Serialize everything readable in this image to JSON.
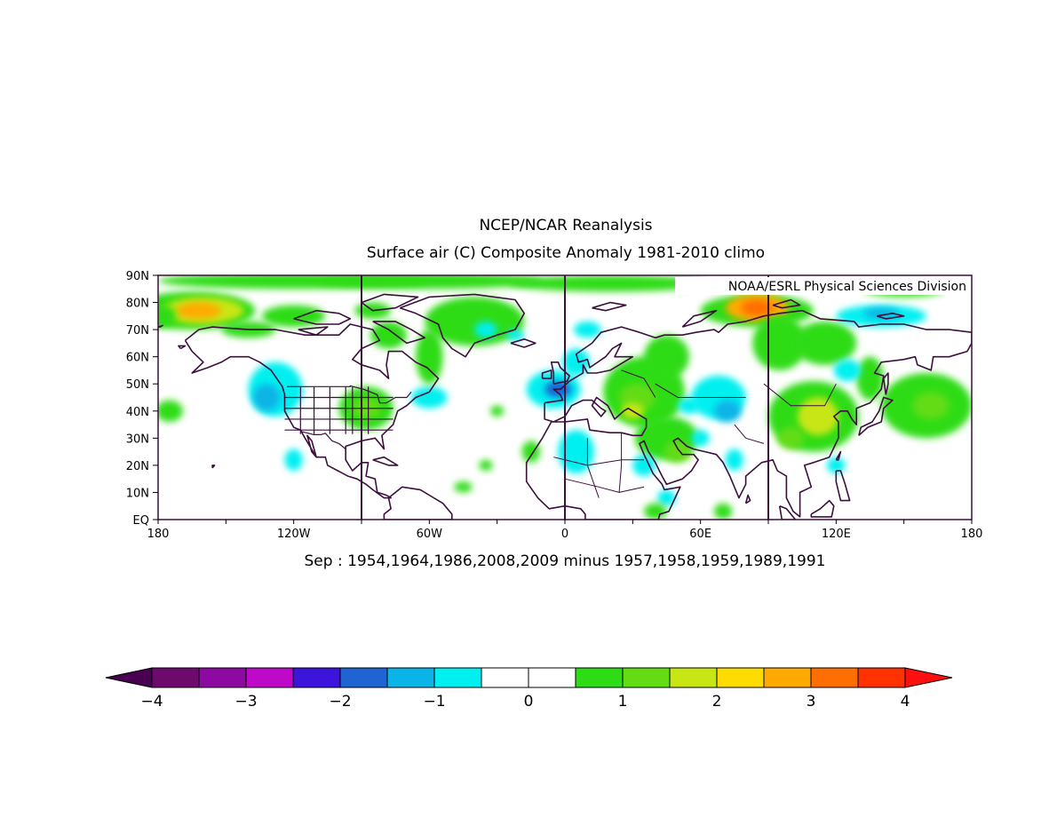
{
  "title": "NCEP/NCAR Reanalysis",
  "subtitle": "Surface air (C) Composite Anomaly 1981-2010 climo",
  "credit": "NOAA/ESRL Physical Sciences Division",
  "caption": "Sep : 1954,1964,1986,2008,2009 minus 1957,1958,1959,1989,1991",
  "map": {
    "lat_labels": [
      "EQ",
      "10N",
      "20N",
      "30N",
      "40N",
      "50N",
      "60N",
      "70N",
      "80N",
      "90N"
    ],
    "lon_labels": [
      "180",
      "120W",
      "60W",
      "0",
      "60E",
      "120E",
      "180"
    ],
    "reference_lon_lines": [
      "90W",
      "0",
      "90E"
    ],
    "colors": {
      "frame": "#3c0f3c",
      "coast": "#3c0f3c",
      "ocean_land_bg": "#ffffff"
    }
  },
  "colorbar": {
    "tick_labels": [
      "-4",
      "-3",
      "-2",
      "-1",
      "0",
      "1",
      "2",
      "3",
      "4"
    ],
    "low_arrow_color": "#4a0050",
    "high_arrow_color": "#ff1010",
    "colors": [
      "#6e0a6e",
      "#8c0aa0",
      "#be0ac8",
      "#3c14dc",
      "#1e64d2",
      "#0ab4e6",
      "#00f0f0",
      "#ffffff",
      "#ffffff",
      "#2ddc14",
      "#64dc14",
      "#c8e614",
      "#ffdc00",
      "#ffaa00",
      "#ff6e00",
      "#ff3200"
    ]
  },
  "anomaly_regions": [
    {
      "name": "Beaufort-Bering warm",
      "lon": -160,
      "lat": 77,
      "color": "#64dc14"
    },
    {
      "name": "Beaufort-Bering core",
      "lon": -162,
      "lat": 77,
      "color": "#ffaa00"
    },
    {
      "name": "Kara-Laptev warm",
      "lon": 85,
      "lat": 77,
      "color": "#ff6e00"
    },
    {
      "name": "Eastern North Pacific cool",
      "lon": -128,
      "lat": 48,
      "color": "#00f0f0"
    },
    {
      "name": "Central US warm",
      "lon": -88,
      "lat": 40,
      "color": "#64dc14"
    },
    {
      "name": "Western Europe cool",
      "lon": 0,
      "lat": 48,
      "color": "#1e64d2"
    },
    {
      "name": "Eastern Europe warm",
      "lon": 35,
      "lat": 48,
      "color": "#64dc14"
    },
    {
      "name": "Central Asia cool",
      "lon": 72,
      "lat": 42,
      "color": "#00f0f0"
    },
    {
      "name": "East Asia warm",
      "lon": 110,
      "lat": 38,
      "color": "#c8e614"
    },
    {
      "name": "Sahara cool",
      "lon": 5,
      "lat": 25,
      "color": "#00f0f0"
    },
    {
      "name": "North Pacific warm",
      "lon": 160,
      "lat": 40,
      "color": "#64dc14"
    },
    {
      "name": "East Siberian Sea cool",
      "lon": 140,
      "lat": 74,
      "color": "#00f0f0"
    }
  ]
}
